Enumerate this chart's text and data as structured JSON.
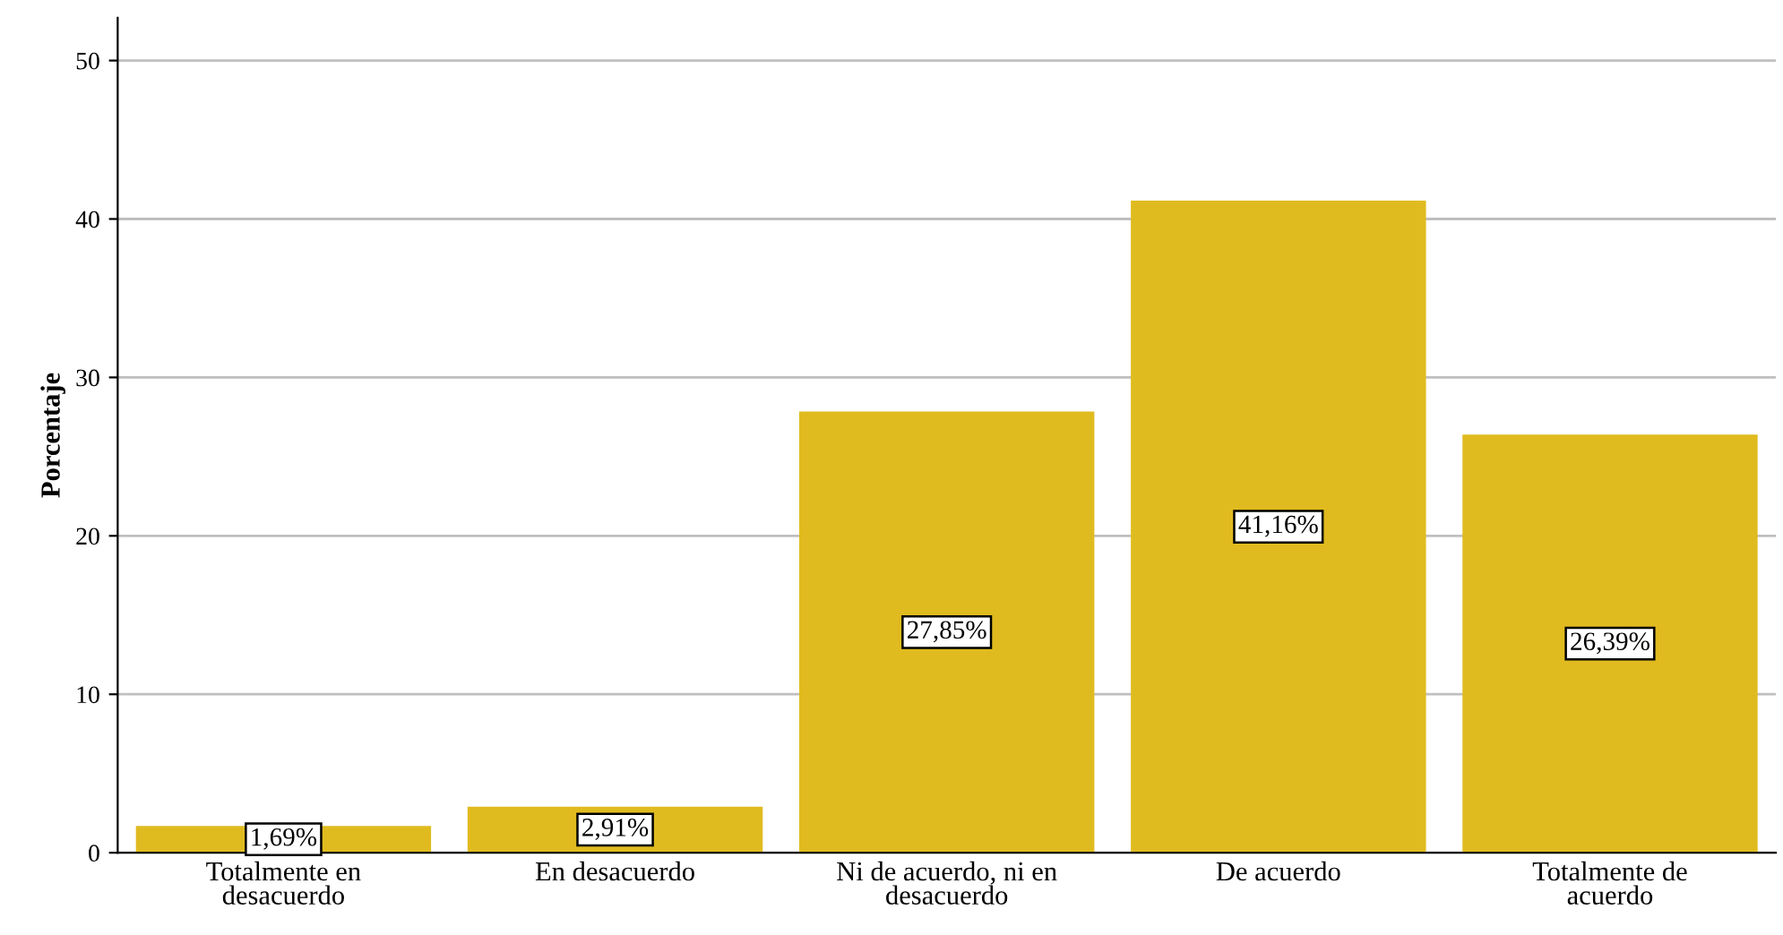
{
  "chart_data": {
    "type": "bar",
    "ylabel": "Porcentaje",
    "categories": [
      "Totalmente en\ndesacuerdo",
      "En desacuerdo",
      "Ni de acuerdo, ni en\ndesacuerdo",
      "De acuerdo",
      "Totalmente de\nacuerdo"
    ],
    "values": [
      1.69,
      2.91,
      27.85,
      41.16,
      26.39
    ],
    "value_labels": [
      "1,69%",
      "2,91%",
      "27,85%",
      "41,16%",
      "26,39%"
    ],
    "color": "#e0bb1f",
    "ylim": [
      0,
      52.7
    ],
    "yticks": [
      0,
      10,
      20,
      30,
      40,
      50
    ],
    "grid": "y"
  }
}
